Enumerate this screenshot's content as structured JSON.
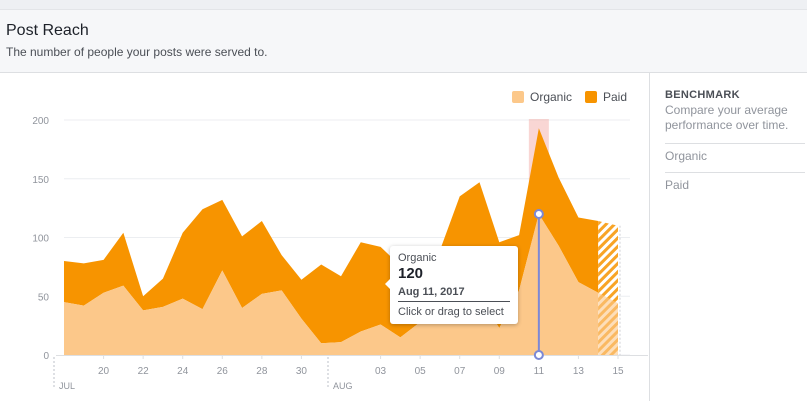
{
  "header": {
    "title": "Post Reach",
    "subtitle": "The number of people your posts were served to."
  },
  "sidebar": {
    "benchmark_title": "BENCHMARK",
    "benchmark_desc": "Compare your average performance over time.",
    "items": [
      {
        "label": "Organic"
      },
      {
        "label": "Paid"
      }
    ]
  },
  "tooltip": {
    "series": "Organic",
    "value": "120",
    "date": "Aug 11, 2017",
    "hint": "Click or drag to select"
  },
  "colors": {
    "organic": "#fcc88a",
    "paid": "#f79400",
    "highlight": "#f2a5a0",
    "marker": "#7b88d6"
  },
  "chart_data": {
    "type": "area",
    "stacked": true,
    "x": [
      "Jul 18",
      "Jul 19",
      "Jul 20",
      "Jul 21",
      "Jul 22",
      "Jul 23",
      "Jul 24",
      "Jul 25",
      "Jul 26",
      "Jul 27",
      "Jul 28",
      "Jul 29",
      "Jul 30",
      "Jul 31",
      "Aug 1",
      "Aug 2",
      "Aug 3",
      "Aug 4",
      "Aug 5",
      "Aug 6",
      "Aug 7",
      "Aug 8",
      "Aug 9",
      "Aug 10",
      "Aug 11",
      "Aug 12",
      "Aug 13",
      "Aug 14",
      "Aug 15"
    ],
    "series": [
      {
        "name": "Organic",
        "values": [
          45,
          42,
          53,
          59,
          38,
          41,
          48,
          39,
          72,
          40,
          52,
          55,
          31,
          10,
          11,
          20,
          26,
          15,
          28,
          42,
          44,
          50,
          23,
          55,
          120,
          93,
          62,
          53,
          44
        ]
      },
      {
        "name": "Paid",
        "values": [
          35,
          36,
          28,
          45,
          12,
          24,
          56,
          85,
          60,
          61,
          62,
          30,
          33,
          67,
          56,
          76,
          66,
          61,
          54,
          47,
          91,
          97,
          73,
          47,
          73,
          58,
          55,
          61,
          66
        ]
      }
    ],
    "x_ticks": [
      "20",
      "22",
      "24",
      "26",
      "28",
      "30",
      "03",
      "05",
      "07",
      "09",
      "11",
      "13",
      "15"
    ],
    "month_labels": [
      "JUL",
      "AUG"
    ],
    "y_ticks": [
      "0",
      "50",
      "100",
      "150",
      "200"
    ],
    "ylim": [
      0,
      200
    ],
    "legend": [
      "Organic",
      "Paid"
    ],
    "legend_position": "top-right",
    "grid": true,
    "highlight_x": "Aug 11",
    "partial_x": "Aug 15"
  }
}
